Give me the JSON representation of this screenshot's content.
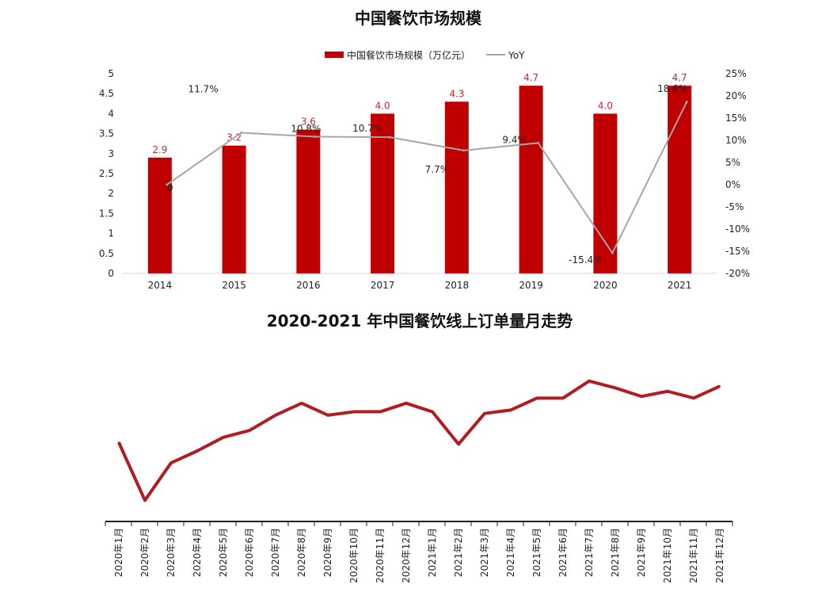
{
  "charts": [
    {
      "title": "中国餐饮市场规模",
      "legend": {
        "bar_label": "中国餐饮市场规模（万亿元）",
        "line_label": "YoY"
      }
    },
    {
      "title": "2020-2021 年中国餐饮线上订单量月走势"
    }
  ],
  "chart_data": [
    {
      "type": "bar",
      "title": "中国餐饮市场规模",
      "categories": [
        "2014",
        "2015",
        "2016",
        "2017",
        "2018",
        "2019",
        "2020",
        "2021"
      ],
      "series": [
        {
          "name": "中国餐饮市场规模（万亿元）",
          "type": "bar",
          "axis": "left",
          "values": [
            2.9,
            3.2,
            3.6,
            4.0,
            4.3,
            4.7,
            4.0,
            4.7
          ],
          "labels": [
            "2.9",
            "3.2",
            "3.6",
            "4.0",
            "4.3",
            "4.7",
            "4.0",
            "4.7"
          ],
          "color": "#c00000"
        },
        {
          "name": "YoY",
          "type": "line",
          "axis": "right",
          "values": [
            0,
            11.7,
            10.8,
            10.7,
            7.7,
            9.4,
            -15.4,
            18.6
          ],
          "labels": [
            "0",
            "11.7%",
            "10.8%",
            "10.7%",
            "7.7%",
            "9.4%",
            "-15.4%",
            "18.6%"
          ],
          "color": "#a6a6a6"
        }
      ],
      "y_left": {
        "min": 0,
        "max": 5,
        "ticks": [
          "0",
          "0.5",
          "1",
          "1.5",
          "2",
          "2.5",
          "3",
          "3.5",
          "4",
          "4.5",
          "5"
        ]
      },
      "y_right": {
        "min": -20,
        "max": 25,
        "ticks": [
          "-20%",
          "-15%",
          "-10%",
          "-5%",
          "0%",
          "5%",
          "10%",
          "15%",
          "20%",
          "25%"
        ]
      },
      "legend_position": "top-center",
      "grid": false
    },
    {
      "type": "line",
      "title": "2020-2021 年中国餐饮线上订单量月走势",
      "categories": [
        "2020年1月",
        "2020年2月",
        "2020年3月",
        "2020年4月",
        "2020年5月",
        "2020年6月",
        "2020年7月",
        "2020年8月",
        "2020年9月",
        "2020年10月",
        "2020年11月",
        "2020年12月",
        "2021年1月",
        "2021年2月",
        "2021年3月",
        "2021年4月",
        "2021年5月",
        "2021年6月",
        "2021年7月",
        "2021年8月",
        "2021年9月",
        "2021年10月",
        "2021年11月",
        "2021年12月"
      ],
      "values": [
        0.45,
        0.11,
        0.33,
        0.4,
        0.48,
        0.52,
        0.61,
        0.68,
        0.61,
        0.63,
        0.63,
        0.68,
        0.63,
        0.44,
        0.62,
        0.64,
        0.71,
        0.71,
        0.81,
        0.77,
        0.72,
        0.75,
        0.71,
        0.78
      ],
      "value_note": "relative level, no value axis shown",
      "color": "#b01c24",
      "y_axis_shown": false,
      "grid": false
    }
  ]
}
